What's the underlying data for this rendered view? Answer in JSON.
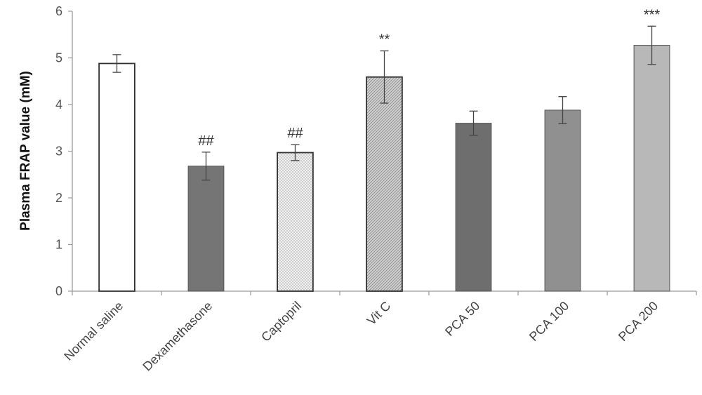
{
  "chart_data": {
    "type": "bar",
    "ylabel": "Plasma FRAP value (mM)",
    "xlabel": "",
    "ylim": [
      0,
      6
    ],
    "yticks": [
      0,
      1,
      2,
      3,
      4,
      5,
      6
    ],
    "grid": false,
    "categories": [
      "Normal saline",
      "Dexamethasone",
      "Captopril",
      "Vit C",
      "PCA 50",
      "PCA 100",
      "PCA 200"
    ],
    "values": [
      4.88,
      2.68,
      2.97,
      4.59,
      3.6,
      3.88,
      5.27
    ],
    "errors": [
      0.19,
      0.3,
      0.17,
      0.56,
      0.26,
      0.29,
      0.41
    ],
    "annotations": [
      "",
      "##",
      "##",
      "**",
      "",
      "",
      "***"
    ],
    "bar_colors": [
      "#ffffff",
      "#757575",
      "#e9e9e9",
      "#cfcfcf",
      "#6e6e6e",
      "#909090",
      "#b8b8b8"
    ],
    "bar_patterns": [
      "none",
      "none",
      "dots",
      "diagonal",
      "none",
      "none",
      "none"
    ]
  }
}
